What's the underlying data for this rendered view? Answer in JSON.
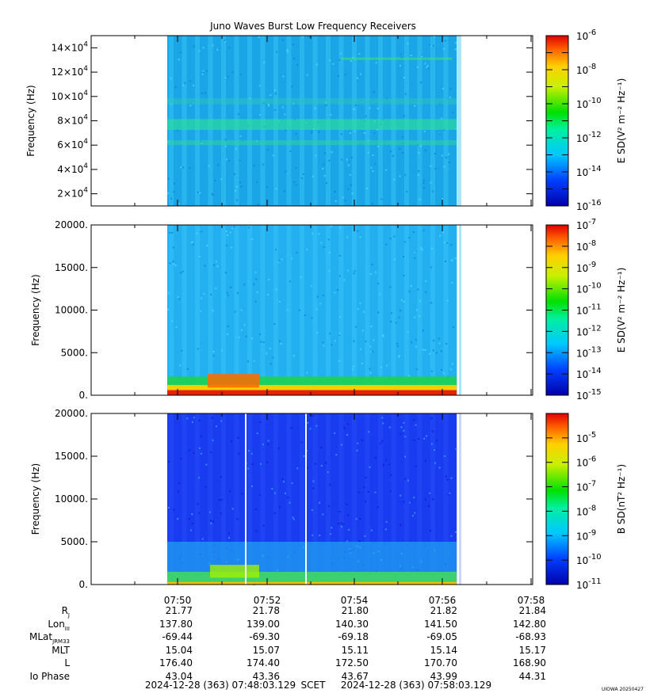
{
  "chart_data": {
    "type": "heatmap",
    "title": "Juno Waves Burst Low Frequency Receivers",
    "time_ticks": [
      "07:50",
      "07:52",
      "07:54",
      "07:56",
      "07:58"
    ],
    "time_start_label": "2024-12-28 (363) 07:48:03.129",
    "time_axis_label": "SCET",
    "time_end_label": "2024-12-28 (363) 07:58:03.129",
    "credit": "UIOWA 20250427",
    "panels": [
      {
        "ylabel": "Frequency (Hz)",
        "ylim": [
          10000,
          150000
        ],
        "y_tick_mantissas": [
          "2",
          "4",
          "6",
          "8",
          "10",
          "12",
          "14"
        ],
        "y_tick_values": [
          20000,
          40000,
          60000,
          80000,
          100000,
          120000,
          140000
        ],
        "y_tick_exponent": "4",
        "colorbar_label": "E SD(V² m⁻² Hz⁻¹)",
        "colorbar_range": [
          -16,
          -6
        ],
        "colorbar_ticks": [
          "-6",
          "-8",
          "-10",
          "-12",
          "-14",
          "-16"
        ],
        "colorbar_tick_values": [
          -6,
          -8,
          -10,
          -12,
          -14,
          -16
        ]
      },
      {
        "ylabel": "Frequency (Hz)",
        "ylim": [
          0,
          20000
        ],
        "y_tick_labels": [
          "0.",
          "5000.",
          "10000.",
          "15000.",
          "20000."
        ],
        "y_tick_values": [
          0,
          5000,
          10000,
          15000,
          20000
        ],
        "colorbar_label": "E SD(V² m⁻² Hz⁻¹)",
        "colorbar_range": [
          -15,
          -7
        ],
        "colorbar_ticks": [
          "-7",
          "-8",
          "-9",
          "-10",
          "-11",
          "-12",
          "-13",
          "-14",
          "-15"
        ],
        "colorbar_tick_values": [
          -7,
          -8,
          -9,
          -10,
          -11,
          -12,
          -13,
          -14,
          -15
        ]
      },
      {
        "ylabel": "Frequency (Hz)",
        "ylim": [
          0,
          20000
        ],
        "y_tick_labels": [
          "0.",
          "5000.",
          "10000.",
          "15000.",
          "20000."
        ],
        "y_tick_values": [
          0,
          5000,
          10000,
          15000,
          20000
        ],
        "colorbar_label": "B SD(nT² Hz⁻¹)",
        "colorbar_range": [
          -11,
          -4
        ],
        "colorbar_ticks": [
          "-5",
          "-6",
          "-7",
          "-8",
          "-9",
          "-10",
          "-11"
        ],
        "colorbar_tick_values": [
          -5,
          -6,
          -7,
          -8,
          -9,
          -10,
          -11
        ]
      }
    ]
  },
  "ephemeris": {
    "rows": [
      {
        "label": "R",
        "sub": "J",
        "values": [
          "21.77",
          "21.78",
          "21.80",
          "21.82",
          "21.84"
        ]
      },
      {
        "label": "Lon",
        "sub": "III",
        "values": [
          "137.80",
          "139.00",
          "140.30",
          "141.50",
          "142.80"
        ]
      },
      {
        "label": "MLat",
        "sub": "JRM33",
        "values": [
          "-69.44",
          "-69.30",
          "-69.18",
          "-69.05",
          "-68.93"
        ]
      },
      {
        "label": "MLT",
        "sub": "",
        "values": [
          "15.04",
          "15.07",
          "15.11",
          "15.14",
          "15.17"
        ]
      },
      {
        "label": "L",
        "sub": "",
        "values": [
          "176.40",
          "174.40",
          "172.50",
          "170.70",
          "168.90"
        ]
      },
      {
        "label": "Io Phase",
        "sub": "",
        "values": [
          "43.04",
          "43.36",
          "43.67",
          "43.99",
          "44.31"
        ]
      }
    ]
  }
}
